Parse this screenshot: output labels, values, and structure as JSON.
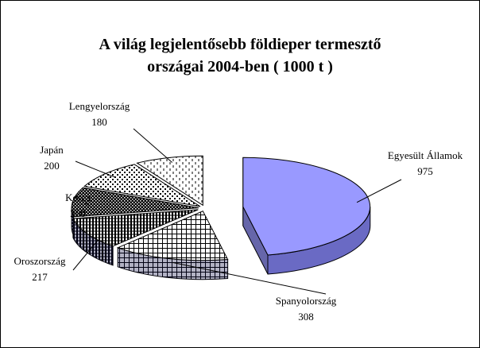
{
  "chart_data": {
    "type": "pie3d",
    "title": [
      "A világ legjelentősebb földieper termesztő",
      "országai 2004-ben ( 1000 t )"
    ],
    "categories": [
      "Egyesült Államok",
      "Spanyolország",
      "Oroszország",
      "Korea",
      "Japán",
      "Lengyelország"
    ],
    "values": [
      975,
      308,
      217,
      200,
      200,
      180
    ],
    "colors": [
      "#9999ff",
      "#ffffff",
      "#ffffff",
      "#ffffff",
      "#ffffff",
      "#ffffff"
    ]
  }
}
